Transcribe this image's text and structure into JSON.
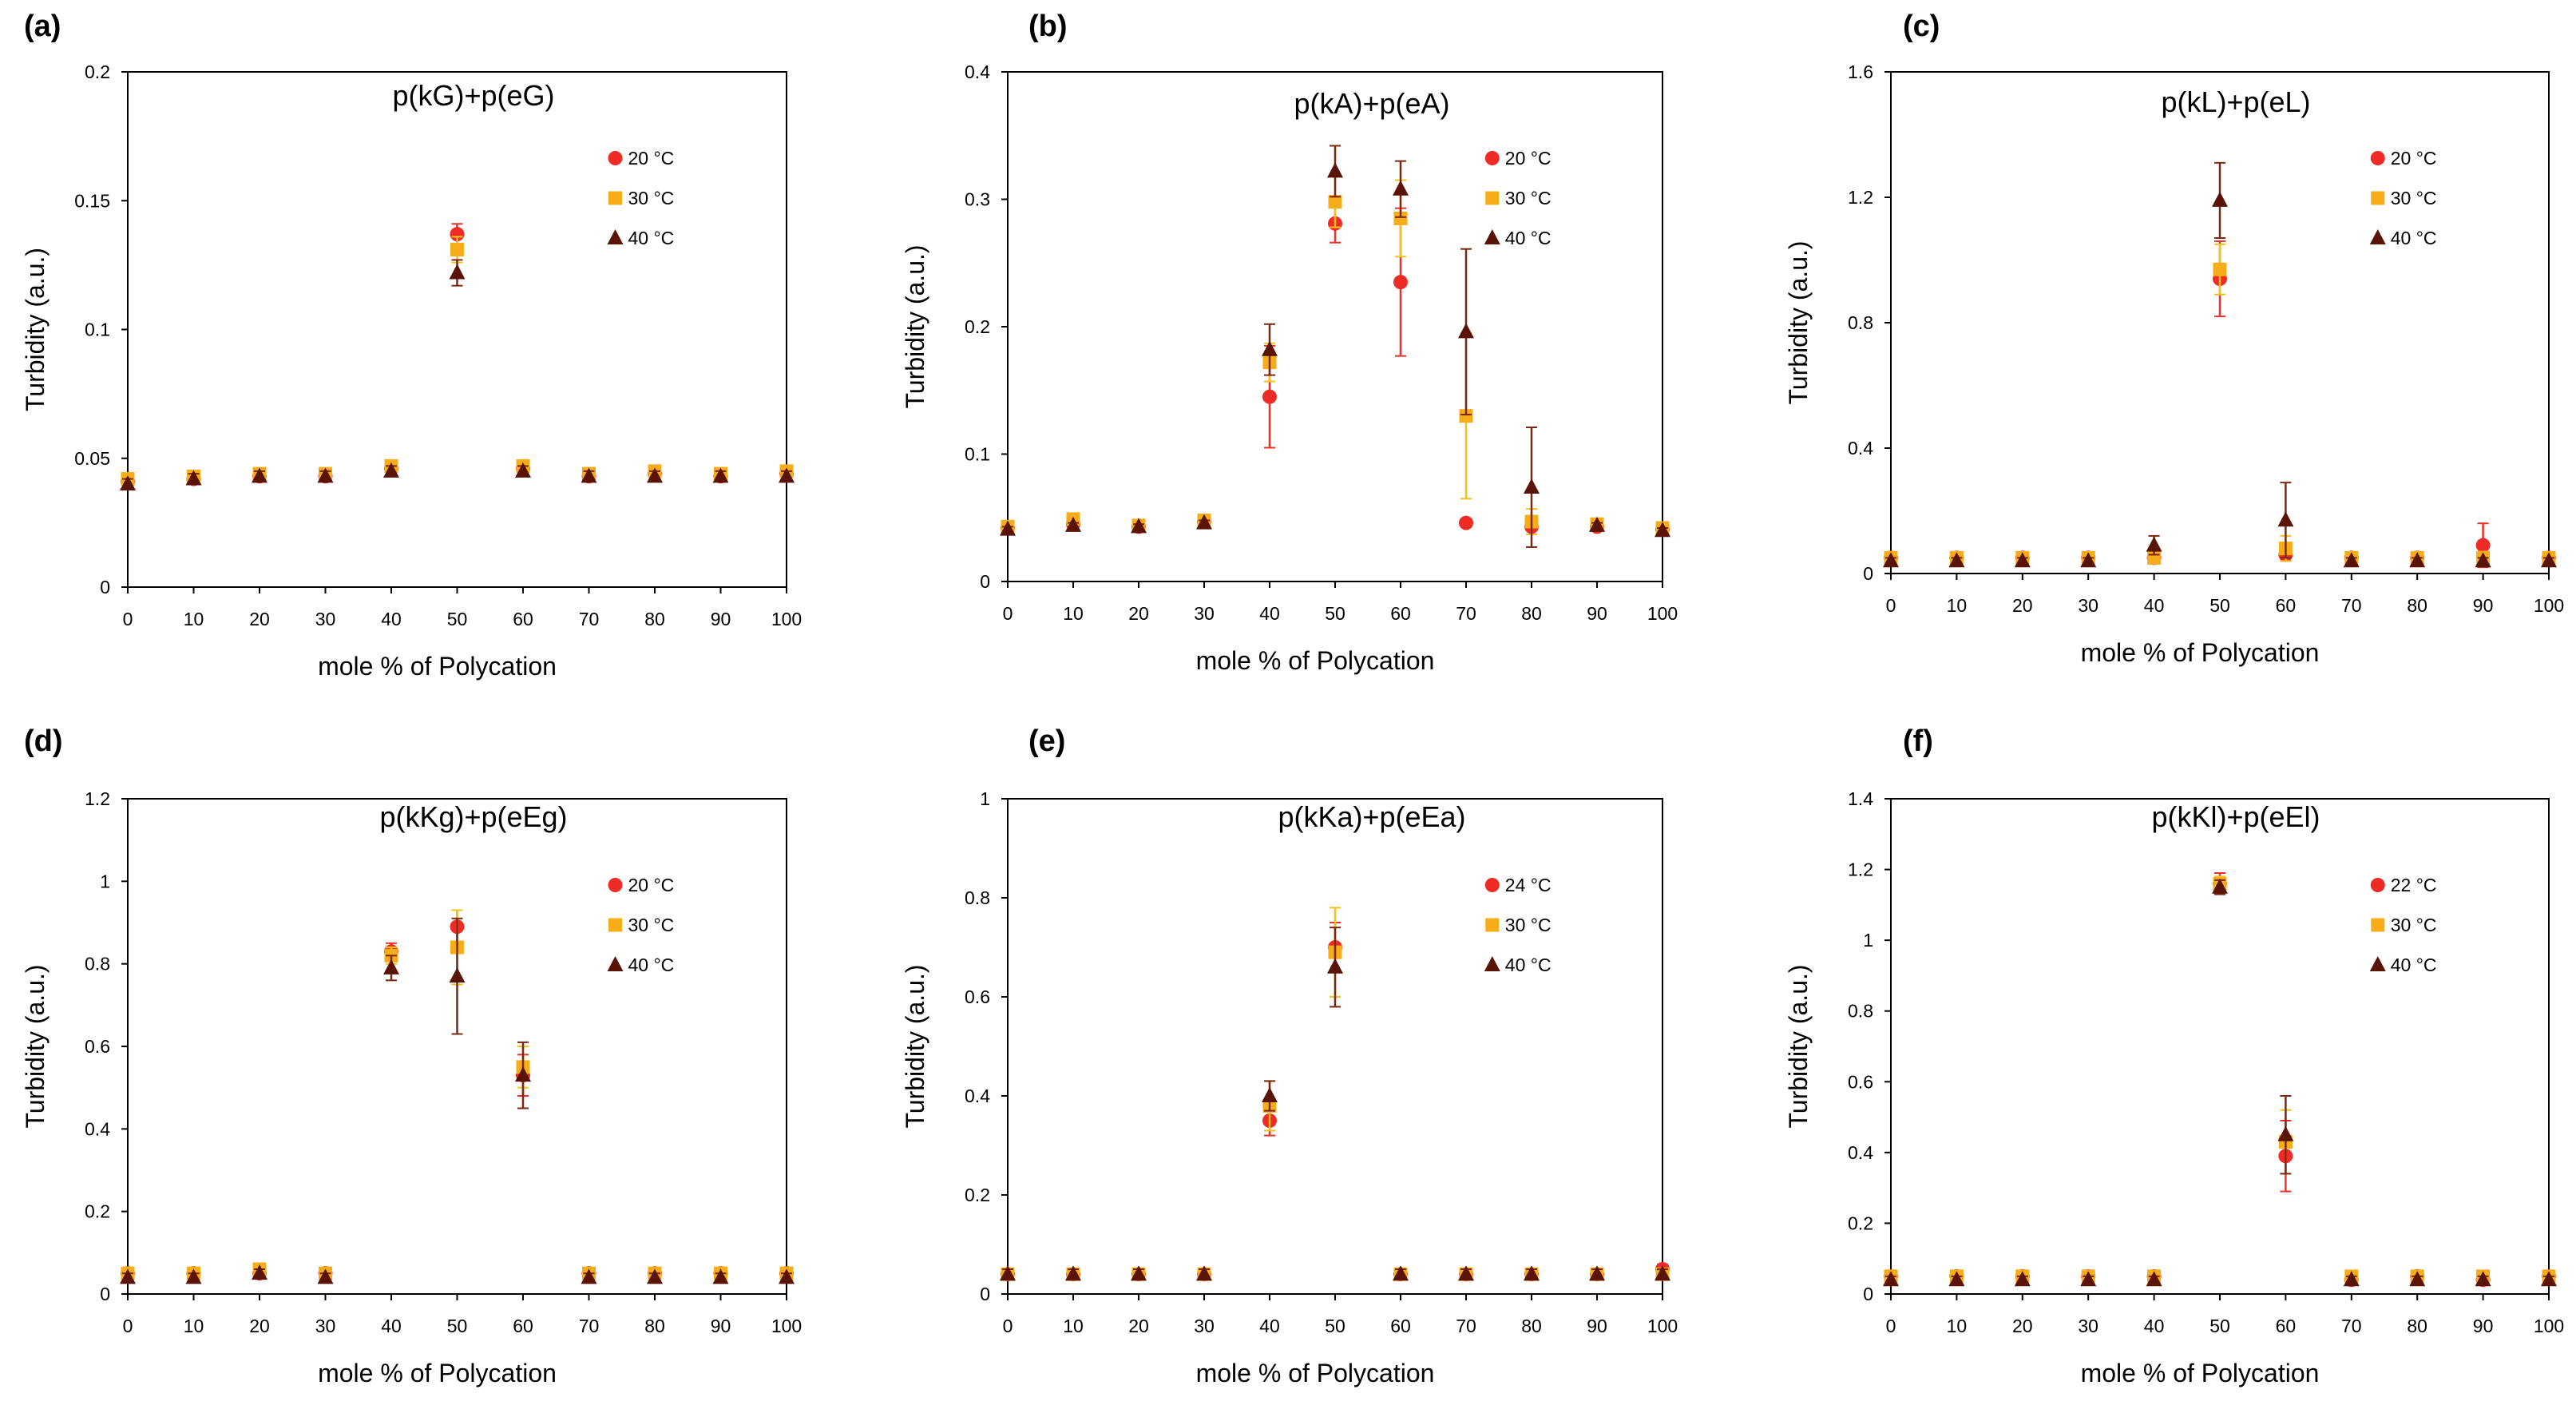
{
  "colors": {
    "series_1": "#ee2b24",
    "series_2": "#f7ad1a",
    "series_3": "#5a1407",
    "error_series_1": "#e8332a",
    "error_series_2": "#f3c21c",
    "error_series_3": "#7a2810"
  },
  "markers": [
    "circle",
    "square",
    "triangle"
  ],
  "chart_data": [
    {
      "panel": "(a)",
      "type": "scatter",
      "title": "p(kG)+p(eG)",
      "xlabel": "mole % of Polycation",
      "ylabel": "Turbidity (a.u.)",
      "xlim": [
        0,
        100
      ],
      "ylim": [
        0,
        0.2
      ],
      "x_ticks": [
        "0",
        "10",
        "20",
        "30",
        "40",
        "50",
        "60",
        "70",
        "80",
        "90",
        "100"
      ],
      "y_ticks": [
        "0",
        "0.05",
        "0.1",
        "0.15",
        "0.2"
      ],
      "legend_position": "top-right",
      "x": [
        0,
        10,
        20,
        30,
        40,
        50,
        60,
        70,
        80,
        90,
        100
      ],
      "series": [
        {
          "name": "20 °C",
          "values": [
            0.041,
            0.042,
            0.043,
            0.043,
            0.046,
            0.137,
            0.046,
            0.043,
            0.044,
            0.043,
            0.044
          ],
          "errors": [
            0.002,
            0.002,
            0.002,
            0.002,
            0.002,
            0.004,
            0.002,
            0.002,
            0.002,
            0.002,
            0.002
          ]
        },
        {
          "name": "30 °C",
          "values": [
            0.042,
            0.043,
            0.044,
            0.044,
            0.047,
            0.131,
            0.047,
            0.044,
            0.045,
            0.044,
            0.045
          ],
          "errors": [
            0.002,
            0.002,
            0.002,
            0.002,
            0.002,
            0.005,
            0.002,
            0.002,
            0.002,
            0.002,
            0.002
          ]
        },
        {
          "name": "40 °C",
          "values": [
            0.04,
            0.042,
            0.043,
            0.043,
            0.045,
            0.122,
            0.045,
            0.043,
            0.043,
            0.043,
            0.043
          ],
          "errors": [
            0.002,
            0.002,
            0.002,
            0.002,
            0.002,
            0.005,
            0.002,
            0.002,
            0.002,
            0.002,
            0.002
          ]
        }
      ]
    },
    {
      "panel": "(b)",
      "type": "scatter",
      "title": "p(kA)+p(eA)",
      "xlabel": "mole % of Polycation",
      "ylabel": "Turbidity (a.u.)",
      "xlim": [
        0,
        100
      ],
      "ylim": [
        0,
        0.4
      ],
      "x_ticks": [
        "0",
        "10",
        "20",
        "30",
        "40",
        "50",
        "60",
        "70",
        "80",
        "90",
        "100"
      ],
      "y_ticks": [
        "0",
        "0.1",
        "0.2",
        "0.3",
        "0.4"
      ],
      "legend_position": "top-right",
      "x": [
        0,
        10,
        20,
        30,
        40,
        50,
        60,
        70,
        80,
        90,
        100
      ],
      "series": [
        {
          "name": "20 °C",
          "values": [
            0.042,
            0.045,
            0.043,
            0.047,
            0.145,
            0.281,
            0.235,
            0.046,
            0.043,
            0.043,
            0.041
          ],
          "errors": [
            0.002,
            0.002,
            0.002,
            0.002,
            0.04,
            0.015,
            0.058,
            0.002,
            0.002,
            0.002,
            0.002
          ]
        },
        {
          "name": "30 °C",
          "values": [
            0.043,
            0.049,
            0.044,
            0.048,
            0.172,
            0.298,
            0.285,
            0.13,
            0.047,
            0.045,
            0.042
          ],
          "errors": [
            0.002,
            0.002,
            0.002,
            0.002,
            0.015,
            0.02,
            0.03,
            0.065,
            0.01,
            0.003,
            0.002
          ]
        },
        {
          "name": "40 °C",
          "values": [
            0.041,
            0.044,
            0.043,
            0.046,
            0.182,
            0.322,
            0.308,
            0.196,
            0.074,
            0.044,
            0.04
          ],
          "errors": [
            0.002,
            0.002,
            0.002,
            0.002,
            0.02,
            0.02,
            0.022,
            0.065,
            0.047,
            0.002,
            0.002
          ]
        }
      ]
    },
    {
      "panel": "(c)",
      "type": "scatter",
      "title": "p(kL)+p(eL)",
      "xlabel": "mole % of Polycation",
      "ylabel": "Turbidity (a.u.)",
      "xlim": [
        0,
        100
      ],
      "ylim": [
        0,
        1.6
      ],
      "x_ticks": [
        "0",
        "10",
        "20",
        "30",
        "40",
        "50",
        "60",
        "70",
        "80",
        "90",
        "100"
      ],
      "y_ticks": [
        "0",
        "0.4",
        "0.8",
        "1.2",
        "1.6"
      ],
      "legend_position": "top-right",
      "x": [
        0,
        10,
        20,
        30,
        40,
        50,
        60,
        70,
        80,
        90,
        100
      ],
      "series": [
        {
          "name": "20 °C",
          "values": [
            0.05,
            0.05,
            0.05,
            0.05,
            0.05,
            0.94,
            0.06,
            0.05,
            0.05,
            0.09,
            0.05
          ],
          "errors": [
            0.01,
            0.01,
            0.01,
            0.01,
            0.01,
            0.12,
            0.02,
            0.01,
            0.01,
            0.07,
            0.01
          ]
        },
        {
          "name": "30 °C",
          "values": [
            0.05,
            0.05,
            0.05,
            0.05,
            0.05,
            0.97,
            0.08,
            0.05,
            0.05,
            0.05,
            0.05
          ],
          "errors": [
            0.01,
            0.01,
            0.01,
            0.01,
            0.01,
            0.08,
            0.04,
            0.01,
            0.01,
            0.02,
            0.01
          ]
        },
        {
          "name": "40 °C",
          "values": [
            0.04,
            0.04,
            0.04,
            0.04,
            0.09,
            1.19,
            0.17,
            0.04,
            0.04,
            0.04,
            0.04
          ],
          "errors": [
            0.01,
            0.01,
            0.01,
            0.01,
            0.03,
            0.12,
            0.12,
            0.01,
            0.01,
            0.01,
            0.01
          ]
        }
      ]
    },
    {
      "panel": "(d)",
      "type": "scatter",
      "title": "p(kKg)+p(eEg)",
      "xlabel": "mole % of Polycation",
      "ylabel": "Turbidity (a.u.)",
      "xlim": [
        0,
        100
      ],
      "ylim": [
        0,
        1.2
      ],
      "x_ticks": [
        "0",
        "10",
        "20",
        "30",
        "40",
        "50",
        "60",
        "70",
        "80",
        "90",
        "100"
      ],
      "y_ticks": [
        "0",
        "0.2",
        "0.4",
        "0.6",
        "0.8",
        "1",
        "1.2"
      ],
      "legend_position": "top-right",
      "x": [
        0,
        10,
        20,
        30,
        40,
        50,
        60,
        70,
        80,
        90,
        100
      ],
      "series": [
        {
          "name": "20 °C",
          "values": [
            0.05,
            0.05,
            0.05,
            0.05,
            0.83,
            0.89,
            0.53,
            0.05,
            0.05,
            0.05,
            0.05
          ],
          "errors": [
            0.01,
            0.01,
            0.01,
            0.01,
            0.02,
            0.04,
            0.05,
            0.01,
            0.01,
            0.01,
            0.01
          ]
        },
        {
          "name": "30 °C",
          "values": [
            0.05,
            0.05,
            0.06,
            0.05,
            0.82,
            0.84,
            0.55,
            0.05,
            0.05,
            0.05,
            0.05
          ],
          "errors": [
            0.01,
            0.01,
            0.01,
            0.01,
            0.02,
            0.09,
            0.05,
            0.01,
            0.01,
            0.01,
            0.01
          ]
        },
        {
          "name": "40 °C",
          "values": [
            0.04,
            0.04,
            0.05,
            0.04,
            0.79,
            0.77,
            0.53,
            0.04,
            0.04,
            0.04,
            0.04
          ],
          "errors": [
            0.01,
            0.01,
            0.01,
            0.01,
            0.03,
            0.14,
            0.08,
            0.01,
            0.01,
            0.01,
            0.01
          ]
        }
      ]
    },
    {
      "panel": "(e)",
      "type": "scatter",
      "title": "p(kKa)+p(eEa)",
      "xlabel": "mole % of Polycation",
      "ylabel": "Turbidity (a.u.)",
      "xlim": [
        0,
        100
      ],
      "ylim": [
        0,
        1
      ],
      "x_ticks": [
        "0",
        "10",
        "20",
        "30",
        "40",
        "50",
        "60",
        "70",
        "80",
        "90",
        "100"
      ],
      "y_ticks": [
        "0",
        "0.2",
        "0.4",
        "0.6",
        "0.8",
        "1"
      ],
      "legend_position": "top-right",
      "x": [
        0,
        10,
        20,
        30,
        40,
        50,
        60,
        70,
        80,
        90,
        100
      ],
      "series": [
        {
          "name": "24 °C",
          "values": [
            0.04,
            0.04,
            0.04,
            0.04,
            0.35,
            0.7,
            0.04,
            0.04,
            0.04,
            0.04,
            0.05
          ],
          "errors": [
            0.01,
            0.01,
            0.01,
            0.01,
            0.03,
            0.05,
            0.01,
            0.01,
            0.01,
            0.01,
            0.01
          ]
        },
        {
          "name": "30 °C",
          "values": [
            0.04,
            0.04,
            0.04,
            0.04,
            0.38,
            0.69,
            0.04,
            0.04,
            0.04,
            0.04,
            0.04
          ],
          "errors": [
            0.01,
            0.01,
            0.01,
            0.01,
            0.05,
            0.09,
            0.01,
            0.01,
            0.01,
            0.01,
            0.01
          ]
        },
        {
          "name": "40 °C",
          "values": [
            0.04,
            0.04,
            0.04,
            0.04,
            0.4,
            0.66,
            0.04,
            0.04,
            0.04,
            0.04,
            0.04
          ],
          "errors": [
            0.01,
            0.01,
            0.01,
            0.01,
            0.03,
            0.08,
            0.01,
            0.01,
            0.01,
            0.01,
            0.01
          ]
        }
      ]
    },
    {
      "panel": "(f)",
      "type": "scatter",
      "title": "p(kKl)+p(eEl)",
      "xlabel": "mole % of Polycation",
      "ylabel": "Turbidity (a.u.)",
      "xlim": [
        0,
        100
      ],
      "ylim": [
        0,
        1.4
      ],
      "x_ticks": [
        "0",
        "10",
        "20",
        "30",
        "40",
        "50",
        "60",
        "70",
        "80",
        "90",
        "100"
      ],
      "y_ticks": [
        "0",
        "0.2",
        "0.4",
        "0.6",
        "0.8",
        "1",
        "1.2",
        "1.4"
      ],
      "legend_position": "top-right",
      "x": [
        0,
        10,
        20,
        30,
        40,
        50,
        60,
        70,
        80,
        90,
        100
      ],
      "series": [
        {
          "name": "22 °C",
          "values": [
            0.05,
            0.05,
            0.05,
            0.05,
            0.05,
            1.16,
            0.39,
            0.04,
            0.05,
            0.04,
            0.05
          ],
          "errors": [
            0.01,
            0.01,
            0.01,
            0.01,
            0.01,
            0.03,
            0.1,
            0.01,
            0.01,
            0.01,
            0.01
          ]
        },
        {
          "name": "30 °C",
          "values": [
            0.05,
            0.05,
            0.05,
            0.05,
            0.05,
            1.16,
            0.43,
            0.05,
            0.05,
            0.05,
            0.05
          ],
          "errors": [
            0.01,
            0.01,
            0.01,
            0.01,
            0.01,
            0.02,
            0.09,
            0.01,
            0.01,
            0.01,
            0.01
          ]
        },
        {
          "name": "40 °C",
          "values": [
            0.04,
            0.04,
            0.04,
            0.04,
            0.04,
            1.15,
            0.45,
            0.04,
            0.04,
            0.04,
            0.04
          ],
          "errors": [
            0.01,
            0.01,
            0.01,
            0.01,
            0.01,
            0.02,
            0.11,
            0.01,
            0.01,
            0.01,
            0.01
          ]
        }
      ]
    }
  ]
}
